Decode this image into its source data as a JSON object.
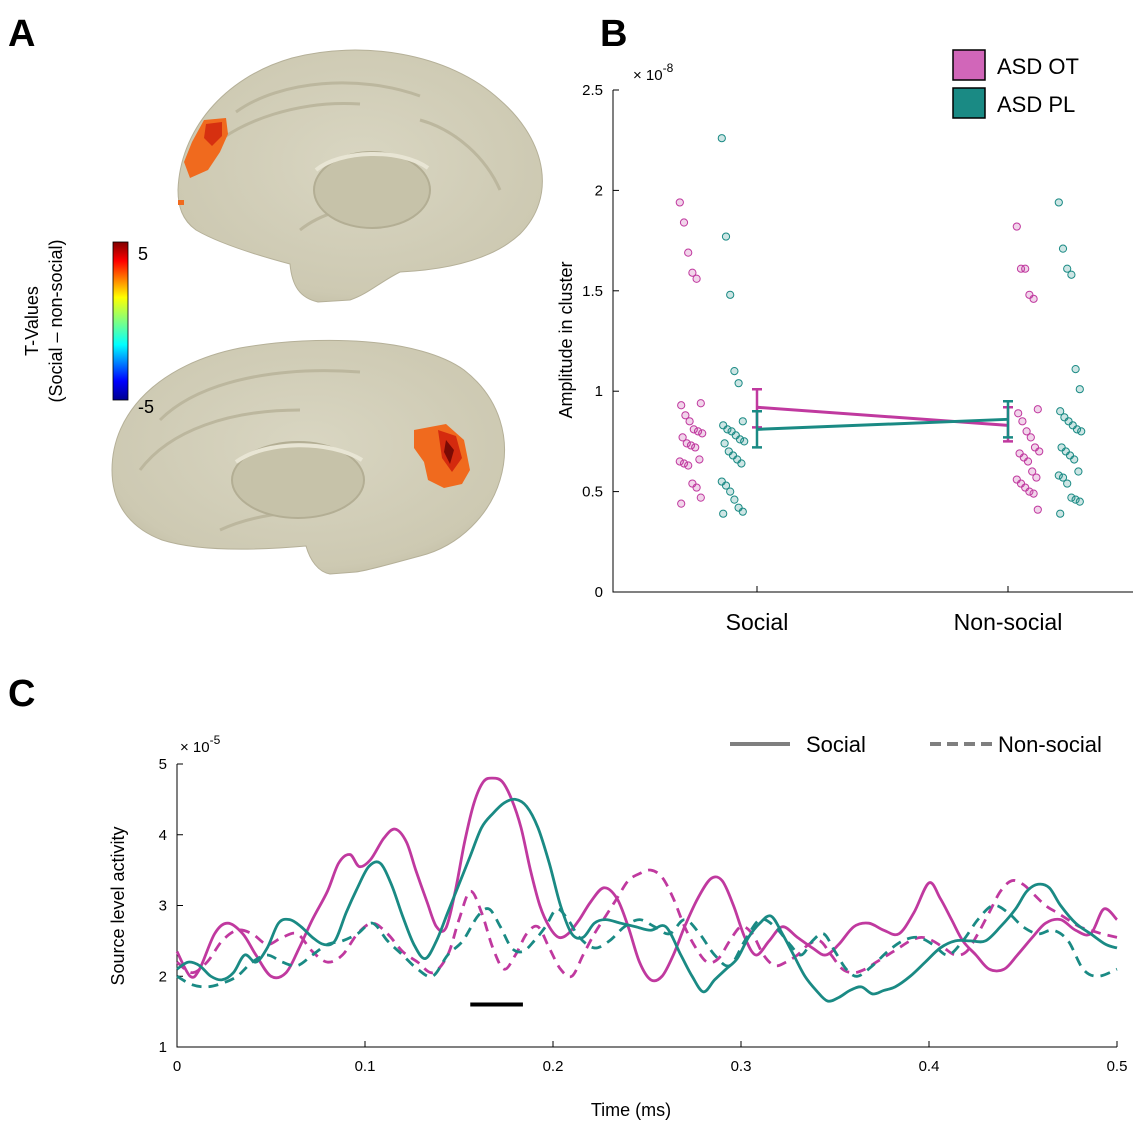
{
  "panels": {
    "a": "A",
    "b": "B",
    "c": "C"
  },
  "colors": {
    "ot": "#c0399f",
    "pl": "#1a8a84",
    "black": "#000000",
    "legend_gray": "#7f7f7f"
  },
  "panel_a": {
    "colorbar": {
      "title_line1": "T-Values",
      "title_line2": "(Social – non-social)",
      "max_label": "5",
      "min_label": "-5",
      "range": [
        -5,
        5
      ]
    }
  },
  "chart_data": [
    {
      "panel": "B",
      "type": "scatter",
      "ylabel": "Amplitude in cluster",
      "exponent_label": "× 10",
      "exponent_power": "-8",
      "ylim": [
        0,
        2.5
      ],
      "yticks": [
        0,
        0.5,
        1,
        1.5,
        2,
        2.5
      ],
      "ytick_labels": [
        "0",
        "0.5",
        "1",
        "1.5",
        "2",
        "2.5"
      ],
      "categories": [
        "Social",
        "Non-social"
      ],
      "legend": {
        "position": "top-right",
        "entries": [
          "ASD OT",
          "ASD PL"
        ]
      },
      "series": [
        {
          "name": "ASD OT",
          "color": "#c0399f",
          "points": {
            "Social": [
              1.94,
              1.84,
              1.69,
              1.59,
              1.56,
              0.94,
              0.93,
              0.88,
              0.85,
              0.81,
              0.8,
              0.79,
              0.77,
              0.74,
              0.73,
              0.72,
              0.66,
              0.65,
              0.64,
              0.63,
              0.54,
              0.52,
              0.47,
              0.44
            ],
            "Non-social": [
              1.82,
              1.61,
              1.61,
              1.48,
              1.46,
              0.91,
              0.89,
              0.85,
              0.8,
              0.77,
              0.72,
              0.7,
              0.69,
              0.67,
              0.65,
              0.6,
              0.57,
              0.56,
              0.54,
              0.52,
              0.5,
              0.49,
              0.41
            ]
          },
          "mean": {
            "Social": 0.92,
            "Non-social": 0.83
          },
          "error": {
            "Social": [
              0.82,
              1.01
            ],
            "Non-social": [
              0.75,
              0.92
            ]
          }
        },
        {
          "name": "ASD PL",
          "color": "#1a8a84",
          "points": {
            "Social": [
              2.26,
              1.77,
              1.48,
              1.1,
              1.04,
              0.85,
              0.83,
              0.81,
              0.8,
              0.78,
              0.76,
              0.75,
              0.74,
              0.7,
              0.68,
              0.66,
              0.64,
              0.55,
              0.53,
              0.5,
              0.46,
              0.42,
              0.4,
              0.39
            ],
            "Non-social": [
              1.94,
              1.71,
              1.61,
              1.58,
              1.11,
              1.01,
              0.9,
              0.87,
              0.85,
              0.83,
              0.81,
              0.8,
              0.72,
              0.7,
              0.68,
              0.66,
              0.6,
              0.58,
              0.57,
              0.54,
              0.47,
              0.46,
              0.45,
              0.39
            ]
          },
          "mean": {
            "Social": 0.81,
            "Non-social": 0.86
          },
          "error": {
            "Social": [
              0.72,
              0.9
            ],
            "Non-social": [
              0.77,
              0.95
            ]
          }
        }
      ]
    },
    {
      "panel": "C",
      "type": "line",
      "xlabel": "Time (ms)",
      "ylabel": "Source level activity",
      "exponent_label": "× 10",
      "exponent_power": "-5",
      "xlim": [
        0,
        0.5
      ],
      "ylim": [
        1,
        5
      ],
      "xticks": [
        0,
        0.1,
        0.2,
        0.3,
        0.4,
        0.5
      ],
      "xtick_labels": [
        "0",
        "0.1",
        "0.2",
        "0.3",
        "0.4",
        "0.5"
      ],
      "yticks": [
        1,
        2,
        3,
        4,
        5
      ],
      "ytick_labels": [
        "1",
        "2",
        "3",
        "4",
        "5"
      ],
      "legend": {
        "position": "top-right",
        "entries": [
          "Social",
          "Non-social"
        ]
      },
      "significance_bar": {
        "x_start": 0.156,
        "x_end": 0.184,
        "y": 1.6
      },
      "series": [
        {
          "name": "ASD OT Social",
          "color": "#c0399f",
          "style": "solid",
          "x": [
            0,
            0.007,
            0.012,
            0.02,
            0.027,
            0.035,
            0.042,
            0.05,
            0.058,
            0.065,
            0.072,
            0.08,
            0.086,
            0.092,
            0.097,
            0.103,
            0.11,
            0.116,
            0.122,
            0.127,
            0.133,
            0.138,
            0.143,
            0.148,
            0.153,
            0.158,
            0.163,
            0.168,
            0.173,
            0.178,
            0.183,
            0.188,
            0.193,
            0.198,
            0.203,
            0.208,
            0.214,
            0.22,
            0.227,
            0.234,
            0.24,
            0.246,
            0.252,
            0.258,
            0.264,
            0.27,
            0.277,
            0.284,
            0.29,
            0.296,
            0.302,
            0.308,
            0.315,
            0.322,
            0.33,
            0.338,
            0.345,
            0.352,
            0.36,
            0.368,
            0.376,
            0.384,
            0.392,
            0.4,
            0.406,
            0.412,
            0.418,
            0.425,
            0.432,
            0.44,
            0.447,
            0.455,
            0.462,
            0.47,
            0.478,
            0.486,
            0.493,
            0.5
          ],
          "y": [
            2.35,
            2.0,
            2.1,
            2.6,
            2.75,
            2.6,
            2.3,
            2.0,
            2.05,
            2.4,
            2.8,
            3.2,
            3.6,
            3.72,
            3.55,
            3.65,
            3.95,
            4.08,
            3.9,
            3.5,
            3.05,
            2.7,
            2.68,
            3.2,
            3.9,
            4.45,
            4.75,
            4.8,
            4.75,
            4.5,
            4.1,
            3.5,
            3.0,
            2.7,
            2.55,
            2.6,
            2.8,
            3.05,
            3.25,
            3.1,
            2.7,
            2.2,
            1.95,
            2.0,
            2.3,
            2.7,
            3.1,
            3.38,
            3.35,
            3.0,
            2.55,
            2.3,
            2.5,
            2.7,
            2.55,
            2.4,
            2.3,
            2.45,
            2.7,
            2.75,
            2.65,
            2.6,
            2.9,
            3.32,
            3.1,
            2.8,
            2.5,
            2.3,
            2.1,
            2.1,
            2.3,
            2.55,
            2.75,
            2.8,
            2.65,
            2.6,
            2.95,
            2.8
          ]
        },
        {
          "name": "ASD OT Non-social",
          "color": "#c0399f",
          "style": "dashed",
          "x": [
            0,
            0.008,
            0.016,
            0.024,
            0.032,
            0.04,
            0.048,
            0.056,
            0.064,
            0.072,
            0.08,
            0.088,
            0.096,
            0.104,
            0.112,
            0.12,
            0.128,
            0.136,
            0.144,
            0.15,
            0.156,
            0.162,
            0.168,
            0.174,
            0.18,
            0.186,
            0.192,
            0.198,
            0.204,
            0.21,
            0.216,
            0.222,
            0.228,
            0.234,
            0.24,
            0.246,
            0.252,
            0.258,
            0.264,
            0.27,
            0.276,
            0.282,
            0.288,
            0.294,
            0.3,
            0.306,
            0.312,
            0.318,
            0.324,
            0.33,
            0.336,
            0.342,
            0.348,
            0.354,
            0.36,
            0.366,
            0.372,
            0.378,
            0.384,
            0.39,
            0.396,
            0.402,
            0.408,
            0.414,
            0.42,
            0.426,
            0.432,
            0.438,
            0.444,
            0.45,
            0.456,
            0.462,
            0.468,
            0.474,
            0.48,
            0.486,
            0.492,
            0.5
          ],
          "y": [
            2.2,
            2.05,
            2.2,
            2.5,
            2.65,
            2.6,
            2.45,
            2.55,
            2.6,
            2.35,
            2.2,
            2.3,
            2.6,
            2.75,
            2.6,
            2.35,
            2.2,
            2.05,
            2.3,
            2.8,
            3.2,
            2.9,
            2.4,
            2.1,
            2.3,
            2.6,
            2.7,
            2.4,
            2.1,
            2.0,
            2.3,
            2.6,
            2.85,
            3.1,
            3.35,
            3.45,
            3.5,
            3.4,
            3.1,
            2.7,
            2.4,
            2.2,
            2.25,
            2.5,
            2.7,
            2.6,
            2.3,
            2.15,
            2.2,
            2.3,
            2.45,
            2.5,
            2.3,
            2.1,
            2.05,
            2.1,
            2.2,
            2.3,
            2.4,
            2.5,
            2.55,
            2.5,
            2.4,
            2.3,
            2.35,
            2.6,
            2.9,
            3.2,
            3.35,
            3.3,
            3.15,
            3.0,
            2.9,
            2.8,
            2.7,
            2.65,
            2.6,
            2.55
          ]
        },
        {
          "name": "ASD PL Social",
          "color": "#1a8a84",
          "style": "solid",
          "x": [
            0,
            0.006,
            0.012,
            0.018,
            0.024,
            0.03,
            0.036,
            0.042,
            0.048,
            0.054,
            0.06,
            0.066,
            0.072,
            0.078,
            0.084,
            0.09,
            0.096,
            0.102,
            0.108,
            0.114,
            0.12,
            0.126,
            0.132,
            0.138,
            0.144,
            0.15,
            0.156,
            0.162,
            0.168,
            0.174,
            0.18,
            0.186,
            0.192,
            0.198,
            0.204,
            0.21,
            0.216,
            0.222,
            0.228,
            0.236,
            0.244,
            0.252,
            0.26,
            0.268,
            0.274,
            0.28,
            0.286,
            0.292,
            0.298,
            0.304,
            0.31,
            0.316,
            0.322,
            0.328,
            0.334,
            0.34,
            0.346,
            0.352,
            0.358,
            0.364,
            0.37,
            0.376,
            0.382,
            0.39,
            0.398,
            0.406,
            0.414,
            0.422,
            0.43,
            0.438,
            0.446,
            0.452,
            0.458,
            0.464,
            0.47,
            0.478,
            0.486,
            0.494,
            0.5
          ],
          "y": [
            2.1,
            2.2,
            2.15,
            2.0,
            1.95,
            2.05,
            2.3,
            2.2,
            2.4,
            2.75,
            2.8,
            2.7,
            2.55,
            2.45,
            2.5,
            2.9,
            3.25,
            3.55,
            3.6,
            3.3,
            2.85,
            2.45,
            2.25,
            2.5,
            2.9,
            3.3,
            3.7,
            4.1,
            4.3,
            4.45,
            4.5,
            4.4,
            4.1,
            3.6,
            3.0,
            2.6,
            2.55,
            2.75,
            2.8,
            2.75,
            2.7,
            2.65,
            2.7,
            2.3,
            2.0,
            1.78,
            1.95,
            2.1,
            2.25,
            2.55,
            2.75,
            2.85,
            2.6,
            2.3,
            2.0,
            1.8,
            1.65,
            1.7,
            1.8,
            1.85,
            1.75,
            1.8,
            1.85,
            2.0,
            2.2,
            2.4,
            2.5,
            2.5,
            2.5,
            2.7,
            2.95,
            3.2,
            3.3,
            3.25,
            3.0,
            2.75,
            2.6,
            2.45,
            2.4
          ]
        },
        {
          "name": "ASD PL Non-social",
          "color": "#1a8a84",
          "style": "dashed",
          "x": [
            0,
            0.008,
            0.016,
            0.024,
            0.032,
            0.04,
            0.048,
            0.056,
            0.064,
            0.072,
            0.08,
            0.088,
            0.096,
            0.104,
            0.112,
            0.12,
            0.128,
            0.136,
            0.144,
            0.152,
            0.16,
            0.166,
            0.172,
            0.178,
            0.184,
            0.19,
            0.196,
            0.202,
            0.208,
            0.214,
            0.222,
            0.23,
            0.238,
            0.246,
            0.254,
            0.262,
            0.27,
            0.278,
            0.286,
            0.294,
            0.302,
            0.31,
            0.318,
            0.326,
            0.332,
            0.338,
            0.344,
            0.35,
            0.356,
            0.362,
            0.37,
            0.378,
            0.386,
            0.394,
            0.402,
            0.41,
            0.418,
            0.426,
            0.434,
            0.442,
            0.45,
            0.458,
            0.466,
            0.474,
            0.482,
            0.49,
            0.5
          ],
          "y": [
            2.0,
            1.88,
            1.85,
            1.9,
            2.0,
            2.2,
            2.3,
            2.2,
            2.15,
            2.3,
            2.45,
            2.5,
            2.6,
            2.75,
            2.5,
            2.3,
            2.1,
            2.0,
            2.3,
            2.5,
            2.85,
            2.95,
            2.7,
            2.4,
            2.35,
            2.5,
            2.7,
            2.95,
            2.8,
            2.55,
            2.4,
            2.5,
            2.7,
            2.8,
            2.7,
            2.6,
            2.8,
            2.6,
            2.3,
            2.15,
            2.5,
            2.8,
            2.7,
            2.45,
            2.3,
            2.5,
            2.6,
            2.35,
            2.1,
            2.0,
            2.15,
            2.35,
            2.5,
            2.55,
            2.45,
            2.3,
            2.5,
            2.8,
            3.0,
            2.9,
            2.7,
            2.6,
            2.65,
            2.5,
            2.1,
            2.0,
            2.1
          ]
        }
      ]
    }
  ]
}
